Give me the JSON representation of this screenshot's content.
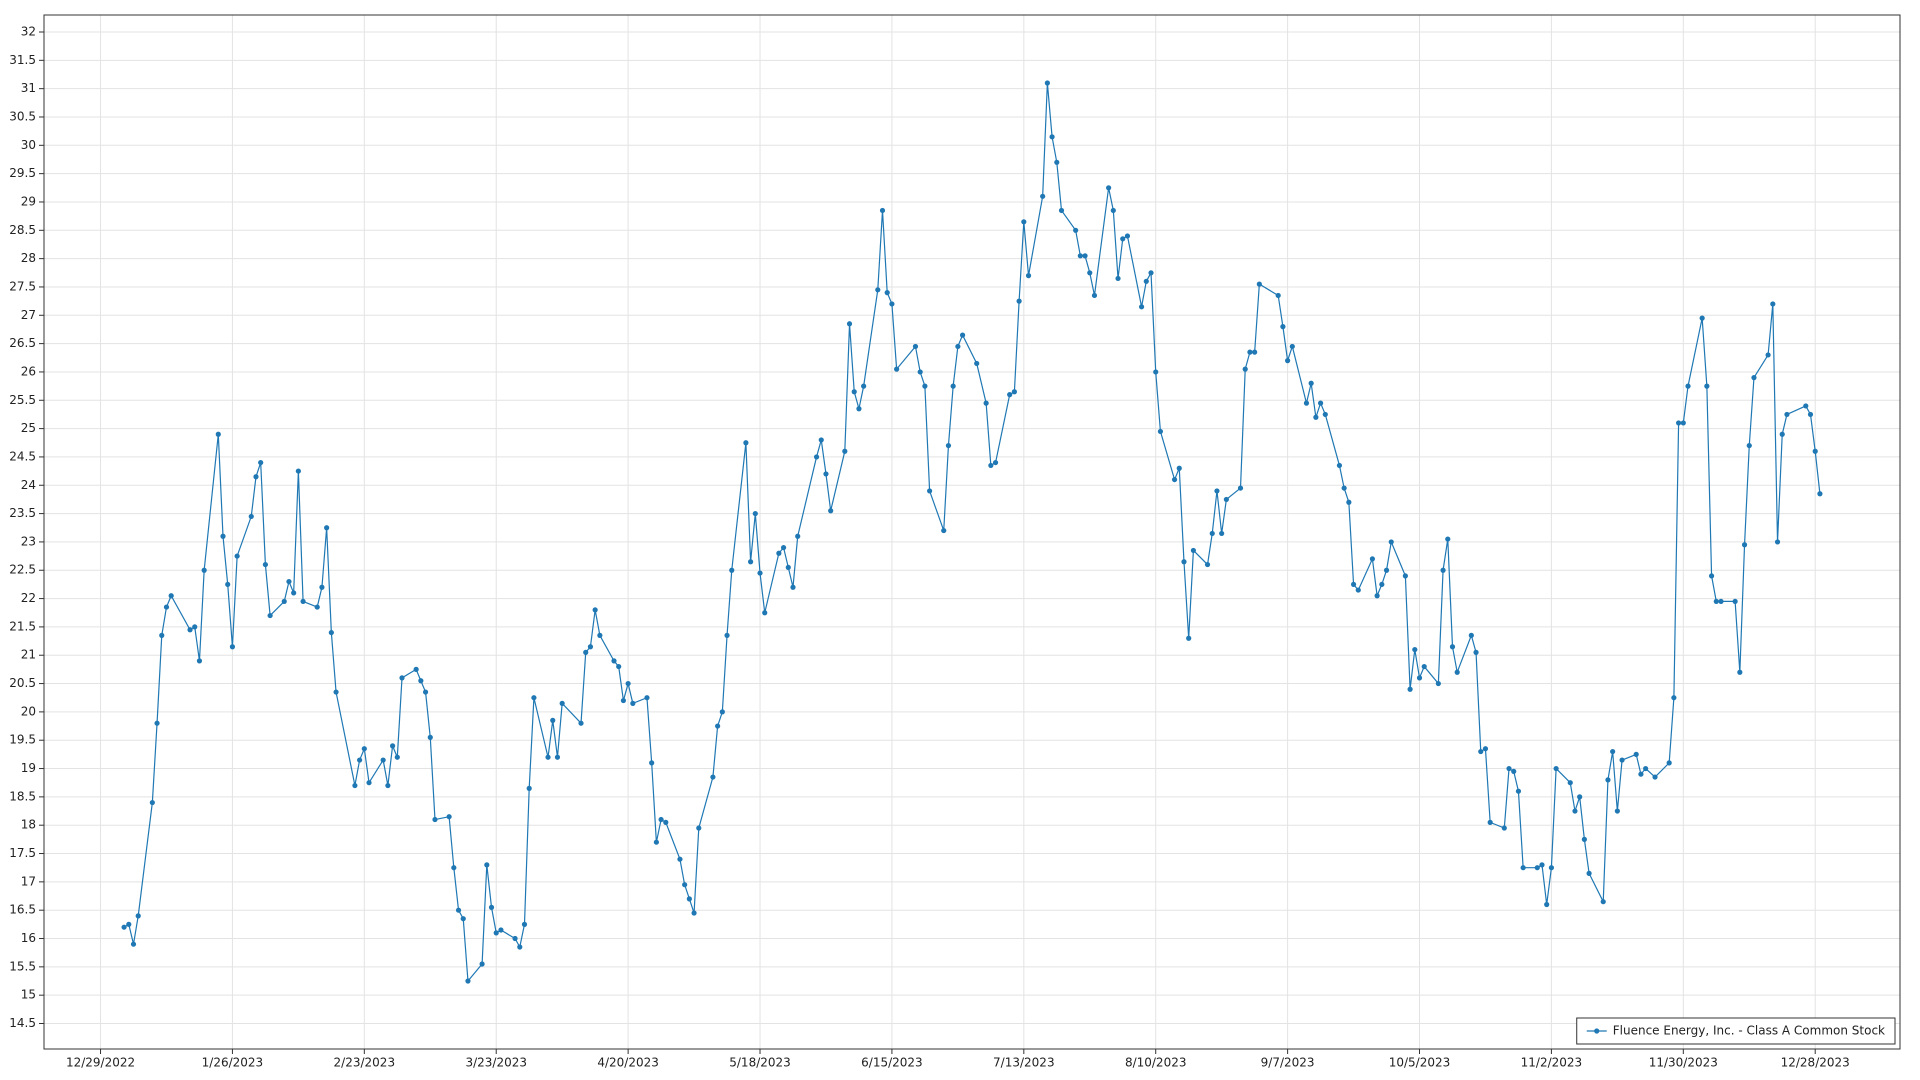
{
  "chart_data": {
    "type": "line",
    "legend": "lower right",
    "grid": true,
    "xlim": [
      "12/17/2022",
      "1/15/2024"
    ],
    "xticks": [
      "12/29/2022",
      "1/26/2023",
      "2/23/2023",
      "3/23/2023",
      "4/20/2023",
      "5/18/2023",
      "6/15/2023",
      "7/13/2023",
      "8/10/2023",
      "9/7/2023",
      "10/5/2023",
      "11/2/2023",
      "11/30/2023",
      "12/28/2023"
    ],
    "ylim": [
      14.05,
      32.3
    ],
    "yticks": [
      14.5,
      15,
      15.5,
      16,
      16.5,
      17,
      17.5,
      18,
      18.5,
      19,
      19.5,
      20,
      20.5,
      21,
      21.5,
      22,
      22.5,
      23,
      23.5,
      24,
      24.5,
      25,
      25.5,
      26,
      26.5,
      27,
      27.5,
      28,
      28.5,
      29,
      29.5,
      30,
      30.5,
      31,
      31.5,
      32
    ],
    "x": [
      "1/3/2023",
      "1/4/2023",
      "1/5/2023",
      "1/6/2023",
      "1/9/2023",
      "1/10/2023",
      "1/11/2023",
      "1/12/2023",
      "1/13/2023",
      "1/17/2023",
      "1/18/2023",
      "1/19/2023",
      "1/20/2023",
      "1/23/2023",
      "1/24/2023",
      "1/25/2023",
      "1/26/2023",
      "1/27/2023",
      "1/30/2023",
      "1/31/2023",
      "2/1/2023",
      "2/2/2023",
      "2/3/2023",
      "2/6/2023",
      "2/7/2023",
      "2/8/2023",
      "2/9/2023",
      "2/10/2023",
      "2/13/2023",
      "2/14/2023",
      "2/15/2023",
      "2/16/2023",
      "2/17/2023",
      "2/21/2023",
      "2/22/2023",
      "2/23/2023",
      "2/24/2023",
      "2/27/2023",
      "2/28/2023",
      "3/1/2023",
      "3/2/2023",
      "3/3/2023",
      "3/6/2023",
      "3/7/2023",
      "3/8/2023",
      "3/9/2023",
      "3/10/2023",
      "3/13/2023",
      "3/14/2023",
      "3/15/2023",
      "3/16/2023",
      "3/17/2023",
      "3/20/2023",
      "3/21/2023",
      "3/22/2023",
      "3/23/2023",
      "3/24/2023",
      "3/27/2023",
      "3/28/2023",
      "3/29/2023",
      "3/30/2023",
      "3/31/2023",
      "4/3/2023",
      "4/4/2023",
      "4/5/2023",
      "4/6/2023",
      "4/10/2023",
      "4/11/2023",
      "4/12/2023",
      "4/13/2023",
      "4/14/2023",
      "4/17/2023",
      "4/18/2023",
      "4/19/2023",
      "4/20/2023",
      "4/21/2023",
      "4/24/2023",
      "4/25/2023",
      "4/26/2023",
      "4/27/2023",
      "4/28/2023",
      "5/1/2023",
      "5/2/2023",
      "5/3/2023",
      "5/4/2023",
      "5/5/2023",
      "5/8/2023",
      "5/9/2023",
      "5/10/2023",
      "5/11/2023",
      "5/12/2023",
      "5/15/2023",
      "5/16/2023",
      "5/17/2023",
      "5/18/2023",
      "5/19/2023",
      "5/22/2023",
      "5/23/2023",
      "5/24/2023",
      "5/25/2023",
      "5/26/2023",
      "5/30/2023",
      "5/31/2023",
      "6/1/2023",
      "6/2/2023",
      "6/5/2023",
      "6/6/2023",
      "6/7/2023",
      "6/8/2023",
      "6/9/2023",
      "6/12/2023",
      "6/13/2023",
      "6/14/2023",
      "6/15/2023",
      "6/16/2023",
      "6/20/2023",
      "6/21/2023",
      "6/22/2023",
      "6/23/2023",
      "6/26/2023",
      "6/27/2023",
      "6/28/2023",
      "6/29/2023",
      "6/30/2023",
      "7/3/2023",
      "7/5/2023",
      "7/6/2023",
      "7/7/2023",
      "7/10/2023",
      "7/11/2023",
      "7/12/2023",
      "7/13/2023",
      "7/14/2023",
      "7/17/2023",
      "7/18/2023",
      "7/19/2023",
      "7/20/2023",
      "7/21/2023",
      "7/24/2023",
      "7/25/2023",
      "7/26/2023",
      "7/27/2023",
      "7/28/2023",
      "7/31/2023",
      "8/1/2023",
      "8/2/2023",
      "8/3/2023",
      "8/4/2023",
      "8/7/2023",
      "8/8/2023",
      "8/9/2023",
      "8/10/2023",
      "8/11/2023",
      "8/14/2023",
      "8/15/2023",
      "8/16/2023",
      "8/17/2023",
      "8/18/2023",
      "8/21/2023",
      "8/22/2023",
      "8/23/2023",
      "8/24/2023",
      "8/25/2023",
      "8/28/2023",
      "8/29/2023",
      "8/30/2023",
      "8/31/2023",
      "9/1/2023",
      "9/5/2023",
      "9/6/2023",
      "9/7/2023",
      "9/8/2023",
      "9/11/2023",
      "9/12/2023",
      "9/13/2023",
      "9/14/2023",
      "9/15/2023",
      "9/18/2023",
      "9/19/2023",
      "9/20/2023",
      "9/21/2023",
      "9/22/2023",
      "9/25/2023",
      "9/26/2023",
      "9/27/2023",
      "9/28/2023",
      "9/29/2023",
      "10/2/2023",
      "10/3/2023",
      "10/4/2023",
      "10/5/2023",
      "10/6/2023",
      "10/9/2023",
      "10/10/2023",
      "10/11/2023",
      "10/12/2023",
      "10/13/2023",
      "10/16/2023",
      "10/17/2023",
      "10/18/2023",
      "10/19/2023",
      "10/20/2023",
      "10/23/2023",
      "10/24/2023",
      "10/25/2023",
      "10/26/2023",
      "10/27/2023",
      "10/30/2023",
      "10/31/2023",
      "11/1/2023",
      "11/2/2023",
      "11/3/2023",
      "11/6/2023",
      "11/7/2023",
      "11/8/2023",
      "11/9/2023",
      "11/10/2023",
      "11/13/2023",
      "11/14/2023",
      "11/15/2023",
      "11/16/2023",
      "11/17/2023",
      "11/20/2023",
      "11/21/2023",
      "11/22/2023",
      "11/24/2023",
      "11/27/2023",
      "11/28/2023",
      "11/29/2023",
      "11/30/2023",
      "12/1/2023",
      "12/4/2023",
      "12/5/2023",
      "12/6/2023",
      "12/7/2023",
      "12/8/2023",
      "12/11/2023",
      "12/12/2023",
      "12/13/2023",
      "12/14/2023",
      "12/15/2023",
      "12/18/2023",
      "12/19/2023",
      "12/20/2023",
      "12/21/2023",
      "12/22/2023",
      "12/26/2023",
      "12/27/2023",
      "12/28/2023",
      "12/29/2023"
    ],
    "series": [
      {
        "name": "Fluence Energy, Inc. - Class A Common Stock",
        "color": "#1f78b4",
        "values": [
          16.2,
          16.25,
          15.9,
          16.4,
          18.4,
          19.8,
          21.35,
          21.85,
          22.05,
          21.45,
          21.5,
          20.9,
          22.5,
          24.9,
          23.1,
          22.25,
          21.15,
          22.75,
          23.45,
          24.15,
          24.4,
          22.6,
          21.7,
          21.95,
          22.3,
          22.1,
          24.25,
          21.95,
          21.85,
          22.2,
          23.25,
          21.4,
          20.35,
          18.7,
          19.15,
          19.35,
          18.75,
          19.15,
          18.7,
          19.4,
          19.2,
          20.6,
          20.75,
          20.55,
          20.35,
          19.55,
          18.1,
          18.15,
          17.25,
          16.5,
          16.35,
          15.25,
          15.55,
          17.3,
          16.55,
          16.1,
          16.15,
          16.0,
          15.85,
          16.25,
          18.65,
          20.25,
          19.2,
          19.85,
          19.2,
          20.15,
          19.8,
          21.05,
          21.15,
          21.8,
          21.35,
          20.9,
          20.8,
          20.2,
          20.5,
          20.15,
          20.25,
          19.1,
          17.7,
          18.1,
          18.05,
          17.4,
          16.95,
          16.7,
          16.45,
          17.95,
          18.85,
          19.75,
          20.0,
          21.35,
          22.5,
          24.75,
          22.65,
          23.5,
          22.45,
          21.75,
          22.8,
          22.9,
          22.55,
          22.2,
          23.1,
          24.5,
          24.8,
          24.2,
          23.55,
          24.6,
          26.85,
          25.65,
          25.35,
          25.75,
          27.45,
          28.85,
          27.4,
          27.2,
          26.05,
          26.45,
          26.0,
          25.75,
          23.9,
          23.2,
          24.7,
          25.75,
          26.45,
          26.65,
          26.15,
          25.45,
          24.35,
          24.4,
          25.6,
          25.65,
          27.25,
          28.65,
          27.7,
          29.1,
          31.1,
          30.15,
          29.7,
          28.85,
          28.5,
          28.05,
          28.05,
          27.75,
          27.35,
          29.25,
          28.85,
          27.65,
          28.35,
          28.4,
          27.15,
          27.6,
          27.75,
          26.0,
          24.95,
          24.1,
          24.3,
          22.65,
          21.3,
          22.85,
          22.6,
          23.15,
          23.9,
          23.15,
          23.75,
          23.95,
          26.05,
          26.35,
          26.35,
          27.55,
          27.35,
          26.8,
          26.2,
          26.45,
          25.45,
          25.8,
          25.2,
          25.45,
          25.25,
          24.35,
          23.95,
          23.7,
          22.25,
          22.15,
          22.7,
          22.05,
          22.25,
          22.5,
          23.0,
          22.4,
          20.4,
          21.1,
          20.6,
          20.8,
          20.5,
          22.5,
          23.05,
          21.15,
          20.7,
          21.35,
          21.05,
          19.3,
          19.35,
          18.05,
          17.95,
          19.0,
          18.95,
          18.6,
          17.25,
          17.25,
          17.3,
          16.6,
          17.25,
          19.0,
          18.75,
          18.25,
          18.5,
          17.75,
          17.15,
          16.65,
          18.8,
          19.3,
          18.25,
          19.15,
          19.25,
          18.9,
          19.0,
          18.85,
          19.1,
          20.25,
          25.1,
          25.1,
          25.75,
          26.95,
          25.75,
          22.4,
          21.95,
          21.95,
          21.95,
          20.7,
          22.95,
          24.7,
          25.9,
          26.3,
          27.2,
          23.0,
          24.9,
          25.25,
          25.4,
          25.25,
          24.6,
          23.85
        ]
      }
    ]
  }
}
